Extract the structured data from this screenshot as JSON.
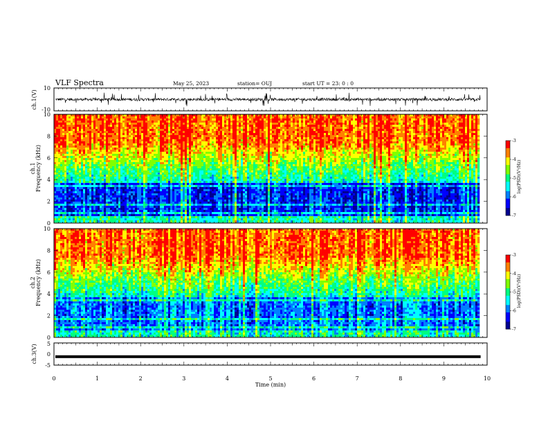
{
  "header": {
    "title": "VLF Spectra",
    "date": "May 25, 2023",
    "station": "station= OUJ",
    "start_time": "start  UT  =   23: 0  : 0"
  },
  "chart_data": [
    {
      "type": "line",
      "panel": "ch1-waveform",
      "ylabel": "ch.1(V)",
      "yticks": [
        "10",
        "-10"
      ],
      "ylim": [
        -10,
        10
      ],
      "baseline": 0,
      "color": "#000000"
    },
    {
      "type": "heatmap",
      "panel": "ch1-spectrogram",
      "ylabel_line1": "ch.1",
      "ylabel_line2": "Frequency  (kHz)",
      "yticks": [
        "0",
        "2",
        "4",
        "6",
        "8",
        "10"
      ],
      "ylim": [
        0,
        10
      ],
      "colorbar": {
        "label": "log(PSD)(V²/Hz)",
        "ticks": [
          "-3",
          "-4",
          "-5",
          "-6",
          "-7"
        ],
        "range": [
          -7,
          -3
        ]
      }
    },
    {
      "type": "heatmap",
      "panel": "ch2-spectrogram",
      "ylabel_line1": "ch.2",
      "ylabel_line2": "Frequency  (kHz)",
      "yticks": [
        "0",
        "2",
        "4",
        "6",
        "8",
        "10"
      ],
      "ylim": [
        0,
        10
      ],
      "colorbar": {
        "label": "log(PSD)(V²/Hz)",
        "ticks": [
          "-3",
          "-4",
          "-5",
          "-6",
          "-7"
        ],
        "range": [
          -7,
          -3
        ]
      }
    },
    {
      "type": "line",
      "panel": "ch3-waveform",
      "ylabel": "ch.3(V)",
      "yticks": [
        "5",
        "0",
        "-5"
      ],
      "ylim": [
        -5,
        5
      ],
      "constant_value": -1.2,
      "color": "#000000"
    }
  ],
  "xaxis": {
    "label": "Time  (min)",
    "ticks": [
      "0",
      "1",
      "2",
      "3",
      "4",
      "5",
      "6",
      "7",
      "8",
      "9",
      "10"
    ],
    "xlim": [
      0,
      10
    ],
    "data_end": 9.85
  },
  "colormap": [
    "#00008f",
    "#0000ff",
    "#0080ff",
    "#00ffff",
    "#00ff80",
    "#80ff00",
    "#ffff00",
    "#ff8000",
    "#ff0000"
  ]
}
